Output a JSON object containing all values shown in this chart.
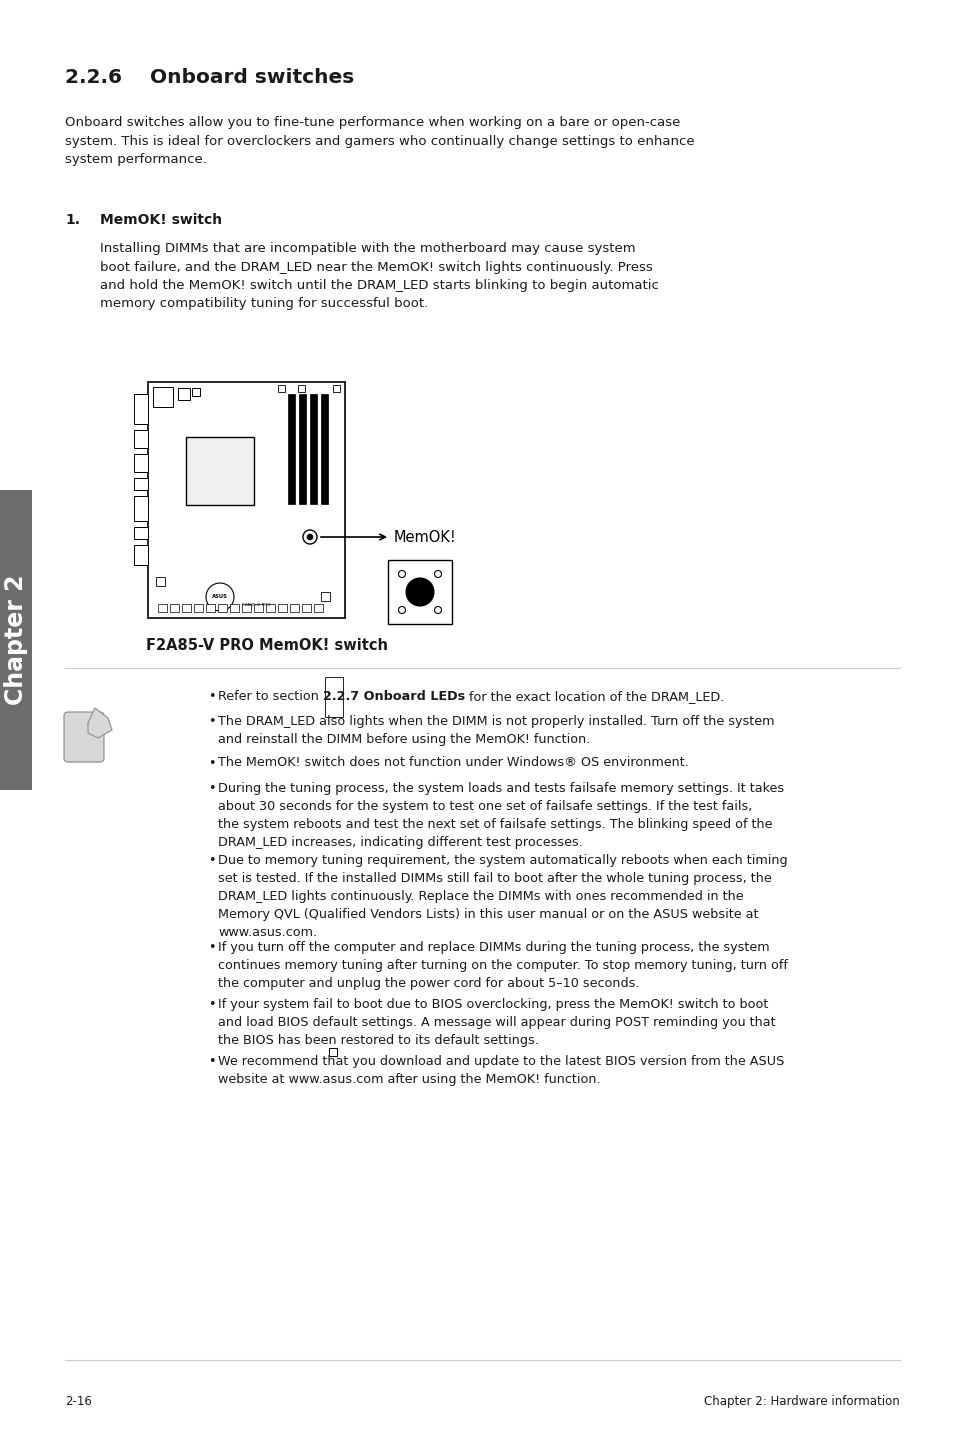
{
  "title_num": "2.2.6",
  "title_text": "Onboard switches",
  "intro_text": "Onboard switches allow you to fine-tune performance when working on a bare or open-case\nsystem. This is ideal for overclockers and gamers who continually change settings to enhance\nsystem performance.",
  "subsection_number": "1.",
  "subsection_title": "MemOK! switch",
  "subsection_body": "Installing DIMMs that are incompatible with the motherboard may cause system\nboot failure, and the DRAM_LED near the MemOK! switch lights continuously. Press\nand hold the MemOK! switch until the DRAM_LED starts blinking to begin automatic\nmemory compatibility tuning for successful boot.",
  "image_caption": "F2A85-V PRO MemOK! switch",
  "bullet_items": [
    {
      "pre": "Refer to section ",
      "bold": "2.2.7 Onboard LEDs",
      "post": " for the exact location of the DRAM_LED.",
      "lines": 1
    },
    {
      "pre": "The DRAM_LED also lights when the DIMM is not properly installed. Turn off the system\nand reinstall the DIMM before using the MemOK! function.",
      "bold": "",
      "post": "",
      "lines": 2
    },
    {
      "pre": "The MemOK! switch does not function under Windows® OS environment.",
      "bold": "",
      "post": "",
      "lines": 1
    },
    {
      "pre": "During the tuning process, the system loads and tests failsafe memory settings. It takes\nabout 30 seconds for the system to test one set of failsafe settings. If the test fails,\nthe system reboots and test the next set of failsafe settings. The blinking speed of the\nDRAM_LED increases, indicating different test processes.",
      "bold": "",
      "post": "",
      "lines": 4
    },
    {
      "pre": "Due to memory tuning requirement, the system automatically reboots when each timing\nset is tested. If the installed DIMMs still fail to boot after the whole tuning process, the\nDRAM_LED lights continuously. Replace the DIMMs with ones recommended in the\nMemory QVL (Qualified Vendors Lists) in this user manual or on the ASUS website at\nwww.asus.com.",
      "bold": "",
      "post": "",
      "lines": 5
    },
    {
      "pre": "If you turn off the computer and replace DIMMs during the tuning process, the system\ncontinues memory tuning after turning on the computer. To stop memory tuning, turn off\nthe computer and unplug the power cord for about 5–10 seconds.",
      "bold": "",
      "post": "",
      "lines": 3
    },
    {
      "pre": "If your system fail to boot due to BIOS overclocking, press the MemOK! switch to boot\nand load BIOS default settings. A message will appear during POST reminding you that\nthe BIOS has been restored to its default settings.",
      "bold": "",
      "post": "",
      "lines": 3
    },
    {
      "pre": "We recommend that you download and update to the latest BIOS version from the ASUS\nwebsite at www.asus.com after using the MemOK! function.",
      "bold": "",
      "post": "",
      "lines": 2
    }
  ],
  "footer_left": "2-16",
  "footer_right": "Chapter 2: Hardware information",
  "sidebar_text": "Chapter 2",
  "bg_color": "#ffffff",
  "text_color": "#1a1a1a",
  "sidebar_bg": "#6d6d6d",
  "sidebar_text_color": "#ffffff",
  "line_color": "#cccccc"
}
